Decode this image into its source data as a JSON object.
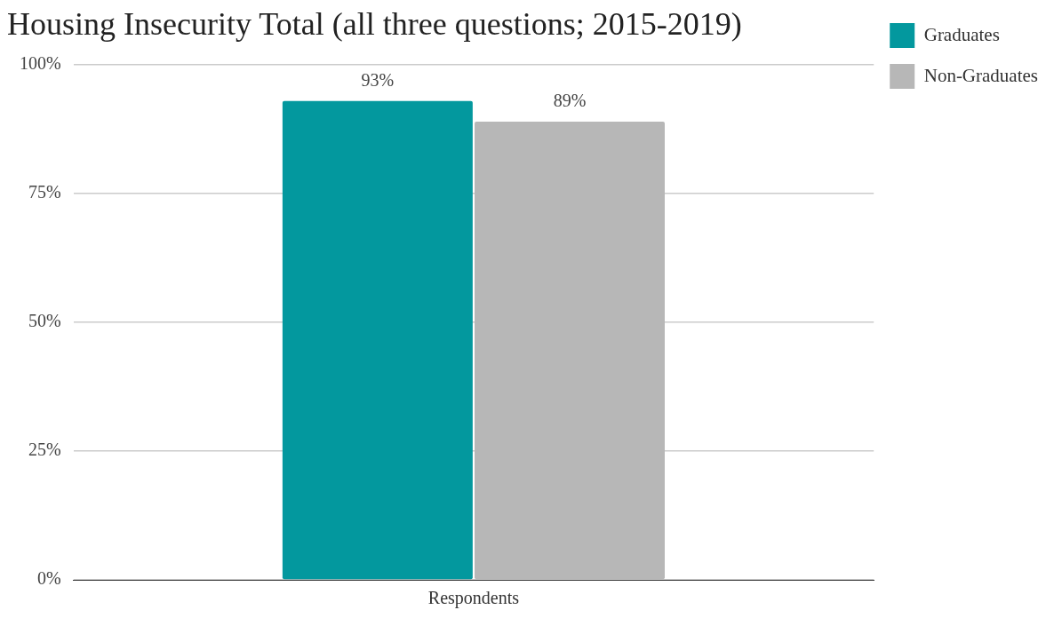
{
  "chart_data": {
    "type": "bar",
    "title": "Housing Insecurity Total (all three questions; 2015-2019)",
    "categories": [
      "Respondents"
    ],
    "series": [
      {
        "name": "Graduates",
        "color": "#03989e",
        "values": [
          93
        ],
        "value_labels": [
          "93%"
        ]
      },
      {
        "name": "Non-Graduates",
        "color": "#b7b7b7",
        "values": [
          89
        ],
        "value_labels": [
          "89%"
        ]
      }
    ],
    "ylim": [
      0,
      100
    ],
    "yticks": [
      {
        "value": 0,
        "label": "0%"
      },
      {
        "value": 25,
        "label": "25%"
      },
      {
        "value": 50,
        "label": "50%"
      },
      {
        "value": 75,
        "label": "75%"
      },
      {
        "value": 100,
        "label": "100%"
      }
    ],
    "grid": "y",
    "legend": "top right"
  }
}
